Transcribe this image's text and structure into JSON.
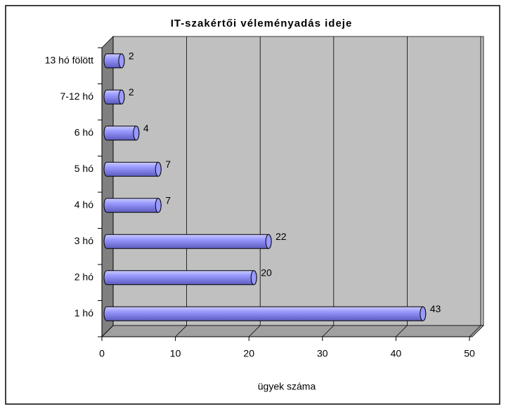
{
  "chart_data": {
    "type": "bar3d_horizontal",
    "title": "IT-szakértői véleményadás ideje",
    "x_label": "ügyek száma",
    "categories": [
      "1 hó",
      "2 hó",
      "3 hó",
      "4 hó",
      "5 hó",
      "6 hó",
      "7-12 hó",
      "13 hó fölött"
    ],
    "values": [
      43,
      20,
      22,
      7,
      7,
      4,
      2,
      2
    ],
    "color": "#9999ff",
    "xlim": [
      0,
      50
    ],
    "xticks": [
      0,
      10,
      20,
      30,
      40,
      50
    ],
    "grid": true
  }
}
